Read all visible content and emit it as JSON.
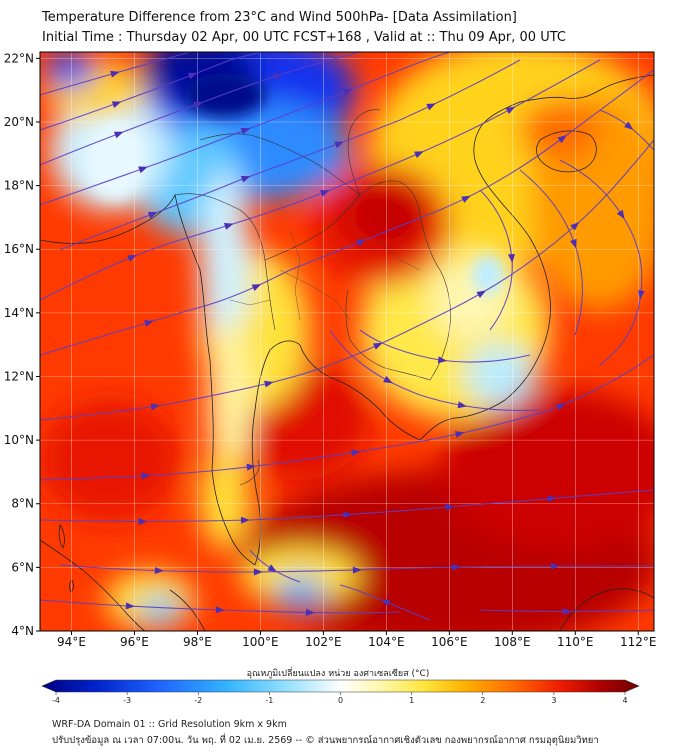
{
  "header": {
    "title_line1": "Temperature Difference from 23°C and Wind 500hPa- [Data Assimilation]",
    "title_line2": "Initial Time : Thursday 02 Apr, 00 UTC FCST+168 , Valid at ::  Thu 09 Apr, 00 UTC"
  },
  "map": {
    "lat_labels": [
      "22°N",
      "20°N",
      "18°N",
      "16°N",
      "14°N",
      "12°N",
      "10°N",
      "8°N",
      "6°N",
      "4°N"
    ],
    "lon_labels": [
      "94°E",
      "96°E",
      "98°E",
      "100°E",
      "102°E",
      "104°E",
      "106°E",
      "108°E",
      "110°E",
      "112°E"
    ],
    "extent": {
      "lon_min": 93.0,
      "lon_max": 112.5,
      "lat_min": 4.0,
      "lat_max": 22.2
    }
  },
  "colorbar": {
    "title": "อุณหภูมิเปลี่ยนแปลง หน่วย องศาเซลเซียส (°C)",
    "tick_labels": [
      "-4",
      "-3",
      "-2",
      "-1",
      "0",
      "1",
      "2",
      "3",
      "4"
    ],
    "colors": [
      "#00007f",
      "#0022cc",
      "#1f66ff",
      "#33b5ff",
      "#9fe3ff",
      "#ffffff",
      "#fff7a8",
      "#ffe53b",
      "#ffb000",
      "#ff6a00",
      "#ee1a00",
      "#aa0000",
      "#6e0000"
    ]
  },
  "footer": {
    "line1": "WRF-DA Domain 01 :: Grid Resolution 9km x 9km",
    "line2": "ปรับปรุงข้อมูล ณ เวลา 07:00น. วัน พฤ. ที่ 02 เม.ย. 2569 -- © ส่วนพยากรณ์อากาศเชิงตัวเลข กองพยากรณ์อากาศ กรมอุตุนิยมวิทยา"
  }
}
